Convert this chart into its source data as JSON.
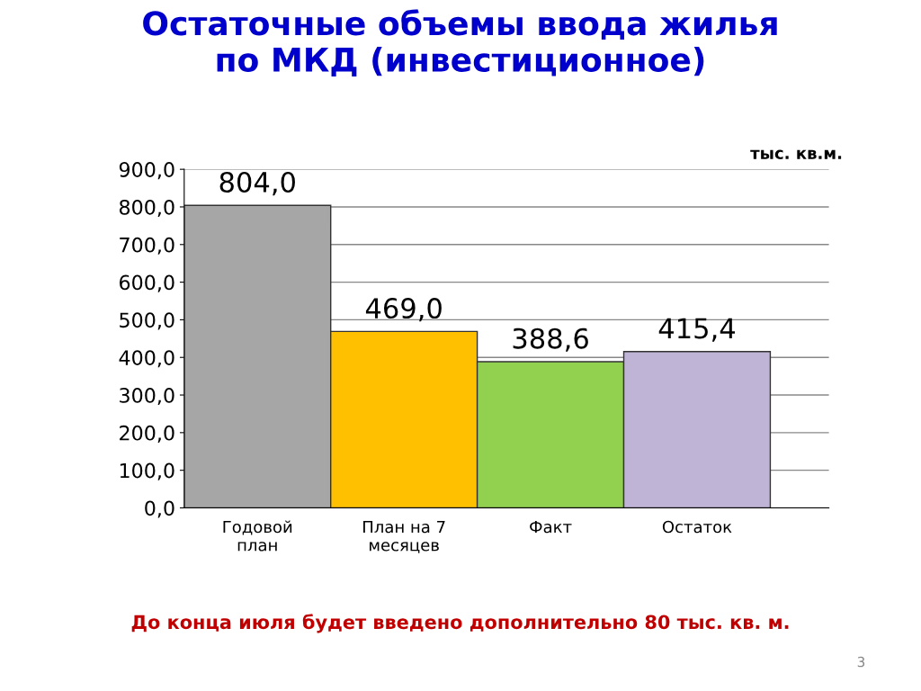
{
  "chart_data": {
    "type": "bar",
    "title": "Остаточные объемы ввода жилья\nпо МКД (инвестиционное)",
    "ylabel": "тыс. кв.м.",
    "categories": [
      "Годовой\nплан",
      "План на 7\nмесяцев",
      "Факт",
      "Остаток"
    ],
    "values": [
      804.0,
      469.0,
      388.6,
      415.4
    ],
    "colors": [
      "#a6a6a6",
      "#ffc000",
      "#92d050",
      "#c0b4d6"
    ],
    "value_labels": [
      "804,0",
      "469,0",
      "388,6",
      "415,4"
    ],
    "ylim": [
      0,
      900
    ],
    "yticks": [
      {
        "value": 0,
        "label": "0,0"
      },
      {
        "value": 100,
        "label": "100,0"
      },
      {
        "value": 200,
        "label": "200,0"
      },
      {
        "value": 300,
        "label": "300,0"
      },
      {
        "value": 400,
        "label": "400,0"
      },
      {
        "value": 500,
        "label": "500,0"
      },
      {
        "value": 600,
        "label": "600,0"
      },
      {
        "value": 700,
        "label": "700,0"
      },
      {
        "value": 800,
        "label": "800,0"
      },
      {
        "value": 900,
        "label": "900,0"
      }
    ],
    "grid": "y",
    "legend": false,
    "annotations": [
      "До конца июля будет введено дополнительно 80 тыс. кв. м.",
      "3"
    ]
  }
}
